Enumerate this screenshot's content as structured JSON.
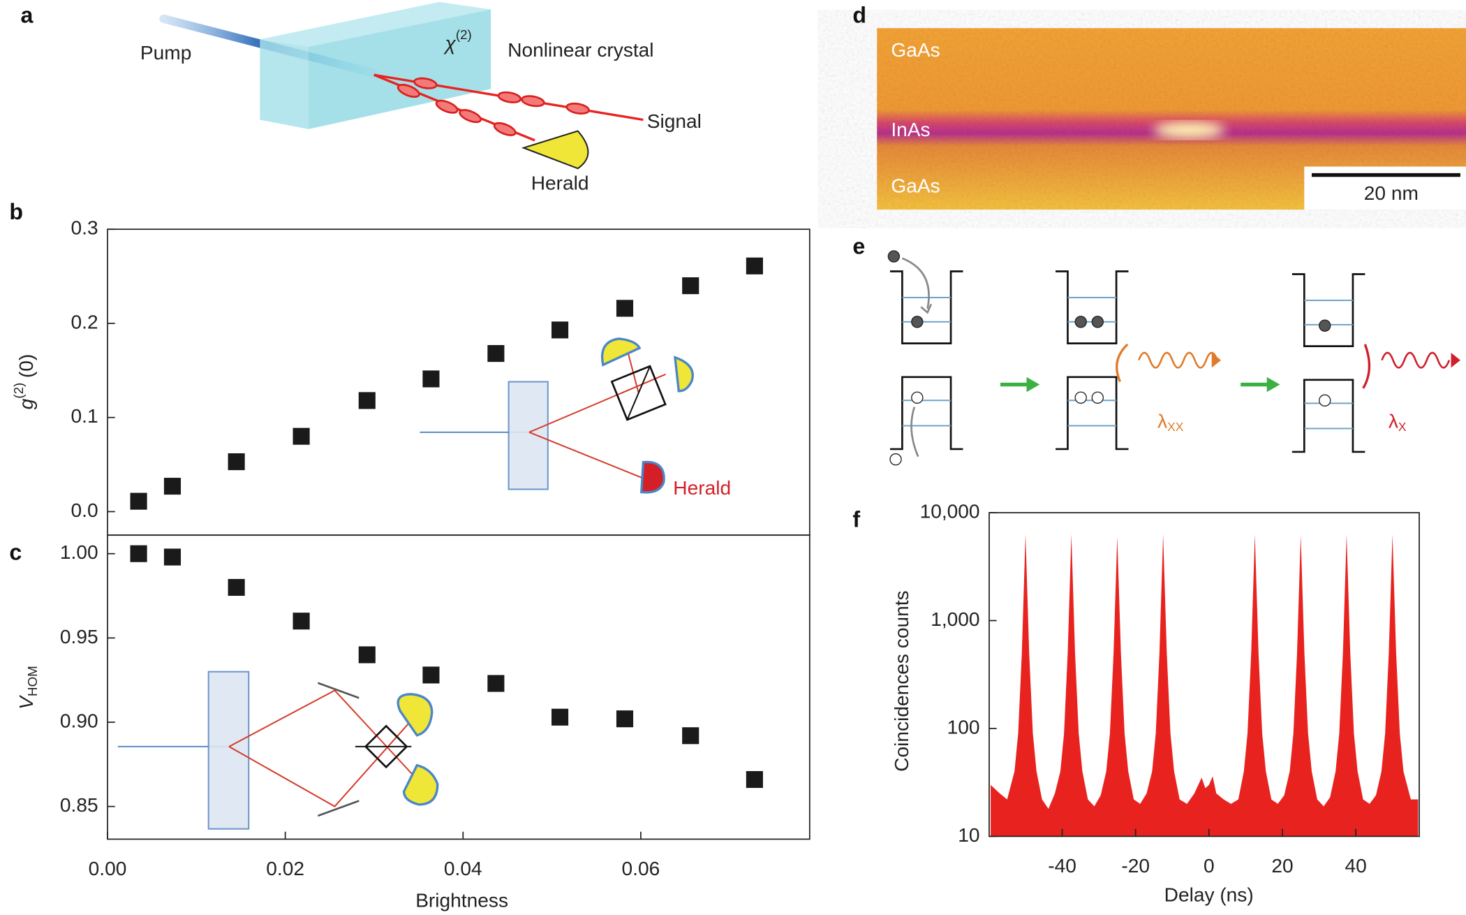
{
  "panel_labels": [
    "a",
    "b",
    "c",
    "d",
    "e",
    "f"
  ],
  "diagram_a": {
    "pump": "Pump",
    "chi": "χ",
    "chi_sup": "(2)",
    "crystal": "Nonlinear crystal",
    "signal": "Signal",
    "herald": "Herald"
  },
  "image_d": {
    "top": "GaAs",
    "middle": "InAs",
    "bottom": "GaAs",
    "scale_bar": "20 nm"
  },
  "diagram_e": {
    "lambda_xx": {
      "symbol": "λ",
      "subscript": "XX"
    },
    "lambda_x": {
      "symbol": "λ",
      "subscript": "X"
    }
  },
  "chart_data": [
    {
      "type": "scatter",
      "color": "#1a1a1a",
      "ylabel": {
        "base": "g",
        "sup": "(2)",
        "tail": "(0)"
      },
      "annotations": [
        "Herald"
      ],
      "x": [
        0.0035,
        0.0073,
        0.0145,
        0.0218,
        0.0292,
        0.0364,
        0.0437,
        0.0509,
        0.0582,
        0.0656,
        0.0728
      ],
      "values": [
        0.011,
        0.027,
        0.053,
        0.08,
        0.118,
        0.141,
        0.168,
        0.193,
        0.216,
        0.24,
        0.261
      ],
      "xlim": [
        0,
        0.079
      ],
      "ylim": [
        -0.025,
        0.3
      ],
      "yticks": [
        {
          "value": 0,
          "label": "0.0"
        },
        0.1,
        0.2,
        0.3
      ]
    },
    {
      "type": "scatter",
      "color": "#1a1a1a",
      "ylabel": {
        "base": "V",
        "sub": "HOM"
      },
      "xlabel": "Brightness",
      "x": [
        0.0035,
        0.0073,
        0.0145,
        0.0218,
        0.0292,
        0.0364,
        0.0437,
        0.0509,
        0.0582,
        0.0656,
        0.0728
      ],
      "values": [
        1.0,
        0.998,
        0.98,
        0.96,
        0.94,
        0.928,
        0.923,
        0.903,
        0.902,
        0.892,
        0.866
      ],
      "xlim": [
        0,
        0.079
      ],
      "ylim": [
        0.8306,
        1.011
      ],
      "xticks": [
        {
          "value": 0,
          "label": "0.00"
        },
        0.02,
        0.04,
        0.06
      ],
      "yticks": [
        {
          "value": 1,
          "label": "1.00"
        },
        0.95,
        {
          "value": 0.9,
          "label": "0.90"
        },
        0.85
      ]
    },
    {
      "type": "area",
      "color": "#e8231f",
      "log_y": true,
      "xlabel": "Delay (ns)",
      "ylabel": "Coincidences counts",
      "x": [
        -59.5,
        -57,
        -55,
        -53,
        -52,
        -51,
        -50,
        -49,
        -48,
        -47,
        -45.5,
        -43.75,
        -42,
        -40.5,
        -39.5,
        -38.5,
        -37.5,
        -36.5,
        -35.5,
        -34.5,
        -33,
        -31.25,
        -29.5,
        -28,
        -27,
        -26,
        -25,
        -24,
        -23,
        -22,
        -20.5,
        -18.75,
        -17,
        -15.5,
        -14.5,
        -13.5,
        -12.5,
        -11.5,
        -10.5,
        -9.5,
        -8,
        -6,
        -4,
        -2,
        -1,
        0,
        1,
        2,
        4,
        6,
        8,
        9.5,
        10.5,
        11.5,
        12.5,
        13.5,
        14.5,
        15.5,
        17,
        18.75,
        20.5,
        22,
        23,
        24,
        25,
        26,
        27,
        28,
        29.5,
        31.25,
        33,
        34.5,
        35.5,
        36.5,
        37.5,
        38.5,
        39.5,
        40.5,
        42,
        43.75,
        45.5,
        47,
        48,
        49,
        50,
        51,
        52,
        53,
        55,
        57
      ],
      "values": [
        30,
        25,
        22,
        40,
        90,
        500,
        6300,
        500,
        90,
        40,
        22,
        18,
        25,
        40,
        90,
        500,
        6300,
        500,
        90,
        40,
        22,
        19,
        24,
        40,
        90,
        500,
        6000,
        500,
        90,
        40,
        22,
        20,
        25,
        40,
        90,
        500,
        6300,
        500,
        90,
        40,
        22,
        20,
        25,
        35,
        28,
        30,
        36,
        25,
        22,
        20,
        22,
        40,
        90,
        500,
        6300,
        500,
        90,
        40,
        22,
        20,
        24,
        40,
        90,
        500,
        6200,
        500,
        90,
        40,
        22,
        19,
        23,
        40,
        90,
        500,
        6300,
        500,
        90,
        40,
        22,
        20,
        24,
        40,
        90,
        500,
        6300,
        500,
        90,
        40,
        22,
        22
      ],
      "xlim": [
        -59.9,
        57.3
      ],
      "ylim": [
        10,
        10000
      ],
      "xticks": [
        -40,
        -20,
        0,
        20,
        40
      ],
      "yticks": [
        10,
        100,
        {
          "value": 1000,
          "label": "1,000"
        },
        {
          "value": 10000,
          "label": "10,000"
        }
      ]
    }
  ]
}
